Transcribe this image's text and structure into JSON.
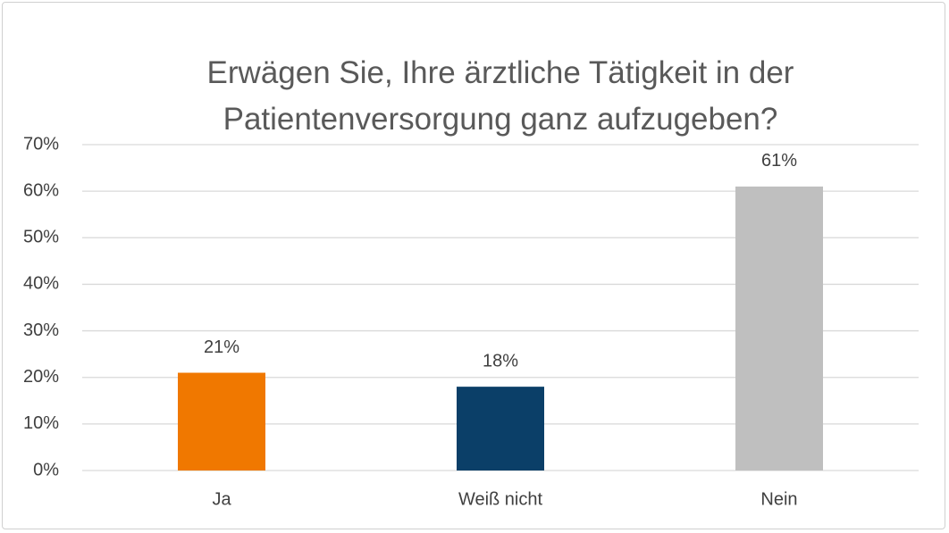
{
  "chart_data": {
    "type": "bar",
    "title": "Erwägen Sie, Ihre ärztliche Tätigkeit in der Patientenversorgung ganz aufzugeben?",
    "categories": [
      "Ja",
      "Weiß nicht",
      "Nein"
    ],
    "values": [
      21,
      18,
      61
    ],
    "value_labels": [
      "21%",
      "18%",
      "61%"
    ],
    "colors": [
      "#f07800",
      "#0b3f68",
      "#bfbfbf"
    ],
    "ylim": [
      0,
      70
    ],
    "yticks": [
      {
        "value": 0,
        "label": "0%"
      },
      {
        "value": 10,
        "label": "10%"
      },
      {
        "value": 20,
        "label": "20%"
      },
      {
        "value": 30,
        "label": "30%"
      },
      {
        "value": 40,
        "label": "40%"
      },
      {
        "value": 50,
        "label": "50%"
      },
      {
        "value": 60,
        "label": "60%"
      },
      {
        "value": 70,
        "label": "70%"
      }
    ],
    "grid": true
  }
}
